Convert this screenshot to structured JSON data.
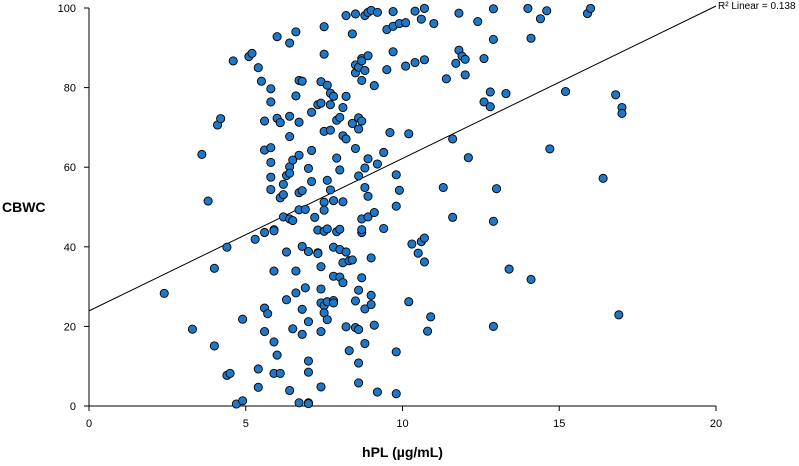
{
  "chart_data": {
    "type": "scatter",
    "title": "",
    "xlabel": "hPL (µg/mL)",
    "ylabel": "CBWC",
    "xlim": [
      0,
      20
    ],
    "ylim": [
      0,
      100
    ],
    "x_ticks": [
      0,
      5,
      10,
      15,
      20
    ],
    "y_ticks": [
      0,
      20,
      40,
      60,
      80,
      100
    ],
    "grid": false,
    "legend": "none",
    "colors": {
      "marker_fill": "#1f77c7",
      "marker_edge": "#000000",
      "line": "#000000"
    },
    "fit_line": {
      "type": "linear",
      "intercept": 23.9,
      "slope": 3.83,
      "label": "R² Linear = 0.138"
    },
    "series": [
      {
        "points": [
          [
            2.4,
            28.3
          ],
          [
            3.3,
            19.3
          ],
          [
            3.6,
            63.2
          ],
          [
            3.8,
            51.5
          ],
          [
            4.0,
            15.1
          ],
          [
            4.0,
            34.6
          ],
          [
            4.1,
            70.6
          ],
          [
            4.2,
            72.2
          ],
          [
            4.4,
            39.9
          ],
          [
            4.4,
            7.7
          ],
          [
            4.5,
            8.2
          ],
          [
            4.6,
            86.7
          ],
          [
            4.7,
            0.5
          ],
          [
            4.9,
            21.8
          ],
          [
            4.9,
            1.3
          ],
          [
            5.1,
            87.8
          ],
          [
            5.2,
            88.6
          ],
          [
            5.3,
            41.9
          ],
          [
            5.4,
            85.0
          ],
          [
            5.4,
            9.3
          ],
          [
            5.4,
            4.7
          ],
          [
            5.5,
            81.6
          ],
          [
            5.6,
            64.3
          ],
          [
            5.6,
            71.6
          ],
          [
            5.6,
            43.6
          ],
          [
            5.6,
            24.6
          ],
          [
            5.6,
            18.7
          ],
          [
            5.7,
            23.2
          ],
          [
            5.8,
            76.4
          ],
          [
            5.8,
            79.7
          ],
          [
            5.8,
            64.9
          ],
          [
            5.8,
            61.2
          ],
          [
            5.8,
            57.5
          ],
          [
            5.8,
            54.4
          ],
          [
            5.9,
            44.3
          ],
          [
            5.9,
            44.0
          ],
          [
            5.9,
            33.9
          ],
          [
            5.9,
            16.1
          ],
          [
            5.9,
            8.2
          ],
          [
            6.0,
            72.3
          ],
          [
            6.0,
            12.8
          ],
          [
            6.0,
            92.8
          ],
          [
            6.1,
            71.2
          ],
          [
            6.1,
            52.3
          ],
          [
            6.1,
            8.2
          ],
          [
            6.2,
            55.7
          ],
          [
            6.2,
            53.1
          ],
          [
            6.2,
            47.5
          ],
          [
            6.3,
            57.9
          ],
          [
            6.3,
            38.7
          ],
          [
            6.3,
            26.7
          ],
          [
            6.4,
            91.2
          ],
          [
            6.4,
            72.8
          ],
          [
            6.4,
            67.7
          ],
          [
            6.4,
            60.1
          ],
          [
            6.4,
            58.5
          ],
          [
            6.4,
            47.0
          ],
          [
            6.4,
            3.9
          ],
          [
            6.5,
            61.8
          ],
          [
            6.5,
            46.6
          ],
          [
            6.5,
            19.4
          ],
          [
            6.6,
            94.0
          ],
          [
            6.6,
            77.9
          ],
          [
            6.6,
            33.9
          ],
          [
            6.6,
            28.4
          ],
          [
            6.7,
            81.8
          ],
          [
            6.7,
            71.3
          ],
          [
            6.7,
            63.0
          ],
          [
            6.7,
            53.6
          ],
          [
            6.7,
            49.3
          ],
          [
            6.7,
            0.8
          ],
          [
            6.8,
            81.6
          ],
          [
            6.8,
            54.1
          ],
          [
            6.8,
            40.1
          ],
          [
            6.8,
            24.3
          ],
          [
            6.8,
            18.0
          ],
          [
            6.9,
            29.7
          ],
          [
            6.9,
            49.4
          ],
          [
            7.0,
            59.7
          ],
          [
            7.0,
            38.8
          ],
          [
            7.0,
            21.2
          ],
          [
            7.0,
            11.3
          ],
          [
            7.0,
            8.5
          ],
          [
            7.0,
            0.8
          ],
          [
            7.0,
            0.6
          ],
          [
            7.1,
            73.8
          ],
          [
            7.1,
            64.2
          ],
          [
            7.1,
            56.4
          ],
          [
            7.2,
            47.4
          ],
          [
            7.3,
            75.7
          ],
          [
            7.3,
            44.2
          ],
          [
            7.3,
            38.5
          ],
          [
            7.3,
            38.3
          ],
          [
            7.4,
            81.5
          ],
          [
            7.4,
            76.1
          ],
          [
            7.4,
            35.0
          ],
          [
            7.4,
            29.4
          ],
          [
            7.4,
            25.9
          ],
          [
            7.4,
            18.7
          ],
          [
            7.4,
            4.8
          ],
          [
            7.5,
            95.3
          ],
          [
            7.5,
            88.4
          ],
          [
            7.5,
            69.0
          ],
          [
            7.5,
            51.2
          ],
          [
            7.5,
            49.2
          ],
          [
            7.5,
            43.9
          ],
          [
            7.5,
            25.2
          ],
          [
            7.5,
            23.4
          ],
          [
            7.6,
            80.6
          ],
          [
            7.6,
            56.7
          ],
          [
            7.6,
            44.5
          ],
          [
            7.6,
            26.2
          ],
          [
            7.6,
            21.7
          ],
          [
            7.7,
            78.6
          ],
          [
            7.7,
            75.7
          ],
          [
            7.7,
            69.3
          ],
          [
            7.7,
            54.3
          ],
          [
            7.8,
            77.8
          ],
          [
            7.8,
            51.6
          ],
          [
            7.8,
            39.9
          ],
          [
            7.8,
            32.6
          ],
          [
            7.8,
            26.5
          ],
          [
            7.8,
            25.9
          ],
          [
            7.9,
            71.8
          ],
          [
            7.9,
            62.3
          ],
          [
            7.9,
            43.8
          ],
          [
            8.0,
            72.5
          ],
          [
            8.0,
            59.3
          ],
          [
            8.0,
            44.4
          ],
          [
            8.0,
            39.3
          ],
          [
            8.0,
            32.4
          ],
          [
            8.1,
            75.0
          ],
          [
            8.1,
            67.9
          ],
          [
            8.1,
            51.3
          ],
          [
            8.1,
            36.0
          ],
          [
            8.1,
            31.0
          ],
          [
            8.2,
            98.1
          ],
          [
            8.2,
            77.8
          ],
          [
            8.2,
            67.1
          ],
          [
            8.2,
            38.7
          ],
          [
            8.2,
            19.9
          ],
          [
            8.3,
            13.9
          ],
          [
            8.3,
            36.5
          ],
          [
            8.4,
            93.5
          ],
          [
            8.4,
            71.0
          ],
          [
            8.4,
            36.7
          ],
          [
            8.5,
            98.5
          ],
          [
            8.5,
            85.7
          ],
          [
            8.5,
            83.7
          ],
          [
            8.5,
            64.7
          ],
          [
            8.5,
            26.4
          ],
          [
            8.5,
            19.7
          ],
          [
            8.6,
            85.1
          ],
          [
            8.6,
            72.4
          ],
          [
            8.6,
            69.6
          ],
          [
            8.6,
            57.8
          ],
          [
            8.6,
            29.1
          ],
          [
            8.6,
            19.2
          ],
          [
            8.6,
            10.8
          ],
          [
            8.6,
            5.8
          ],
          [
            8.7,
            87.3
          ],
          [
            8.7,
            86.7
          ],
          [
            8.7,
            81.8
          ],
          [
            8.7,
            71.6
          ],
          [
            8.7,
            47.0
          ],
          [
            8.7,
            43.6
          ],
          [
            8.7,
            44.3
          ],
          [
            8.7,
            32.2
          ],
          [
            8.8,
            98.1
          ],
          [
            8.8,
            84.3
          ],
          [
            8.8,
            59.8
          ],
          [
            8.8,
            54.9
          ],
          [
            8.8,
            24.4
          ],
          [
            8.8,
            15.7
          ],
          [
            8.9,
            98.9
          ],
          [
            8.9,
            88.0
          ],
          [
            8.9,
            62.1
          ],
          [
            8.9,
            52.7
          ],
          [
            8.9,
            47.5
          ],
          [
            9.0,
            99.4
          ],
          [
            9.0,
            37.2
          ],
          [
            9.0,
            27.8
          ],
          [
            9.0,
            25.5
          ],
          [
            9.1,
            80.5
          ],
          [
            9.1,
            48.6
          ],
          [
            9.1,
            20.3
          ],
          [
            9.2,
            98.9
          ],
          [
            9.2,
            60.8
          ],
          [
            9.2,
            3.5
          ],
          [
            9.4,
            63.7
          ],
          [
            9.4,
            44.6
          ],
          [
            9.5,
            94.6
          ],
          [
            9.5,
            84.5
          ],
          [
            9.6,
            68.7
          ],
          [
            9.7,
            99.1
          ],
          [
            9.7,
            95.4
          ],
          [
            9.7,
            89.0
          ],
          [
            9.8,
            58.1
          ],
          [
            9.8,
            50.2
          ],
          [
            9.8,
            13.6
          ],
          [
            9.8,
            3.1
          ],
          [
            9.9,
            96.1
          ],
          [
            9.9,
            54.2
          ],
          [
            10.1,
            96.3
          ],
          [
            10.1,
            85.4
          ],
          [
            10.2,
            26.2
          ],
          [
            10.2,
            68.4
          ],
          [
            10.3,
            40.7
          ],
          [
            10.4,
            99.2
          ],
          [
            10.4,
            86.3
          ],
          [
            10.5,
            38.4
          ],
          [
            10.6,
            97.2
          ],
          [
            10.6,
            41.3
          ],
          [
            10.7,
            99.9
          ],
          [
            10.7,
            87.0
          ],
          [
            10.7,
            42.2
          ],
          [
            10.7,
            36.2
          ],
          [
            10.8,
            18.8
          ],
          [
            10.9,
            22.4
          ],
          [
            11.0,
            96.1
          ],
          [
            11.3,
            54.9
          ],
          [
            11.4,
            82.2
          ],
          [
            11.6,
            67.1
          ],
          [
            11.6,
            47.4
          ],
          [
            11.7,
            86.1
          ],
          [
            11.8,
            98.7
          ],
          [
            11.8,
            89.4
          ],
          [
            11.9,
            87.9
          ],
          [
            12.0,
            87.1
          ],
          [
            12.0,
            83.2
          ],
          [
            12.1,
            62.4
          ],
          [
            12.4,
            96.6
          ],
          [
            12.6,
            87.3
          ],
          [
            12.6,
            76.4
          ],
          [
            12.8,
            75.2
          ],
          [
            12.8,
            78.9
          ],
          [
            12.9,
            92.1
          ],
          [
            12.9,
            99.8
          ],
          [
            12.9,
            46.4
          ],
          [
            12.9,
            20.0
          ],
          [
            13.0,
            54.6
          ],
          [
            13.3,
            78.5
          ],
          [
            13.4,
            34.4
          ],
          [
            14.0,
            99.9
          ],
          [
            14.1,
            92.4
          ],
          [
            14.1,
            31.8
          ],
          [
            14.4,
            97.3
          ],
          [
            14.6,
            99.3
          ],
          [
            14.7,
            64.6
          ],
          [
            15.2,
            79.0
          ],
          [
            15.9,
            98.6
          ],
          [
            16.0,
            99.9
          ],
          [
            16.4,
            57.2
          ],
          [
            16.8,
            78.2
          ],
          [
            16.9,
            22.9
          ],
          [
            17.0,
            75.0
          ],
          [
            17.0,
            73.5
          ]
        ]
      }
    ]
  }
}
